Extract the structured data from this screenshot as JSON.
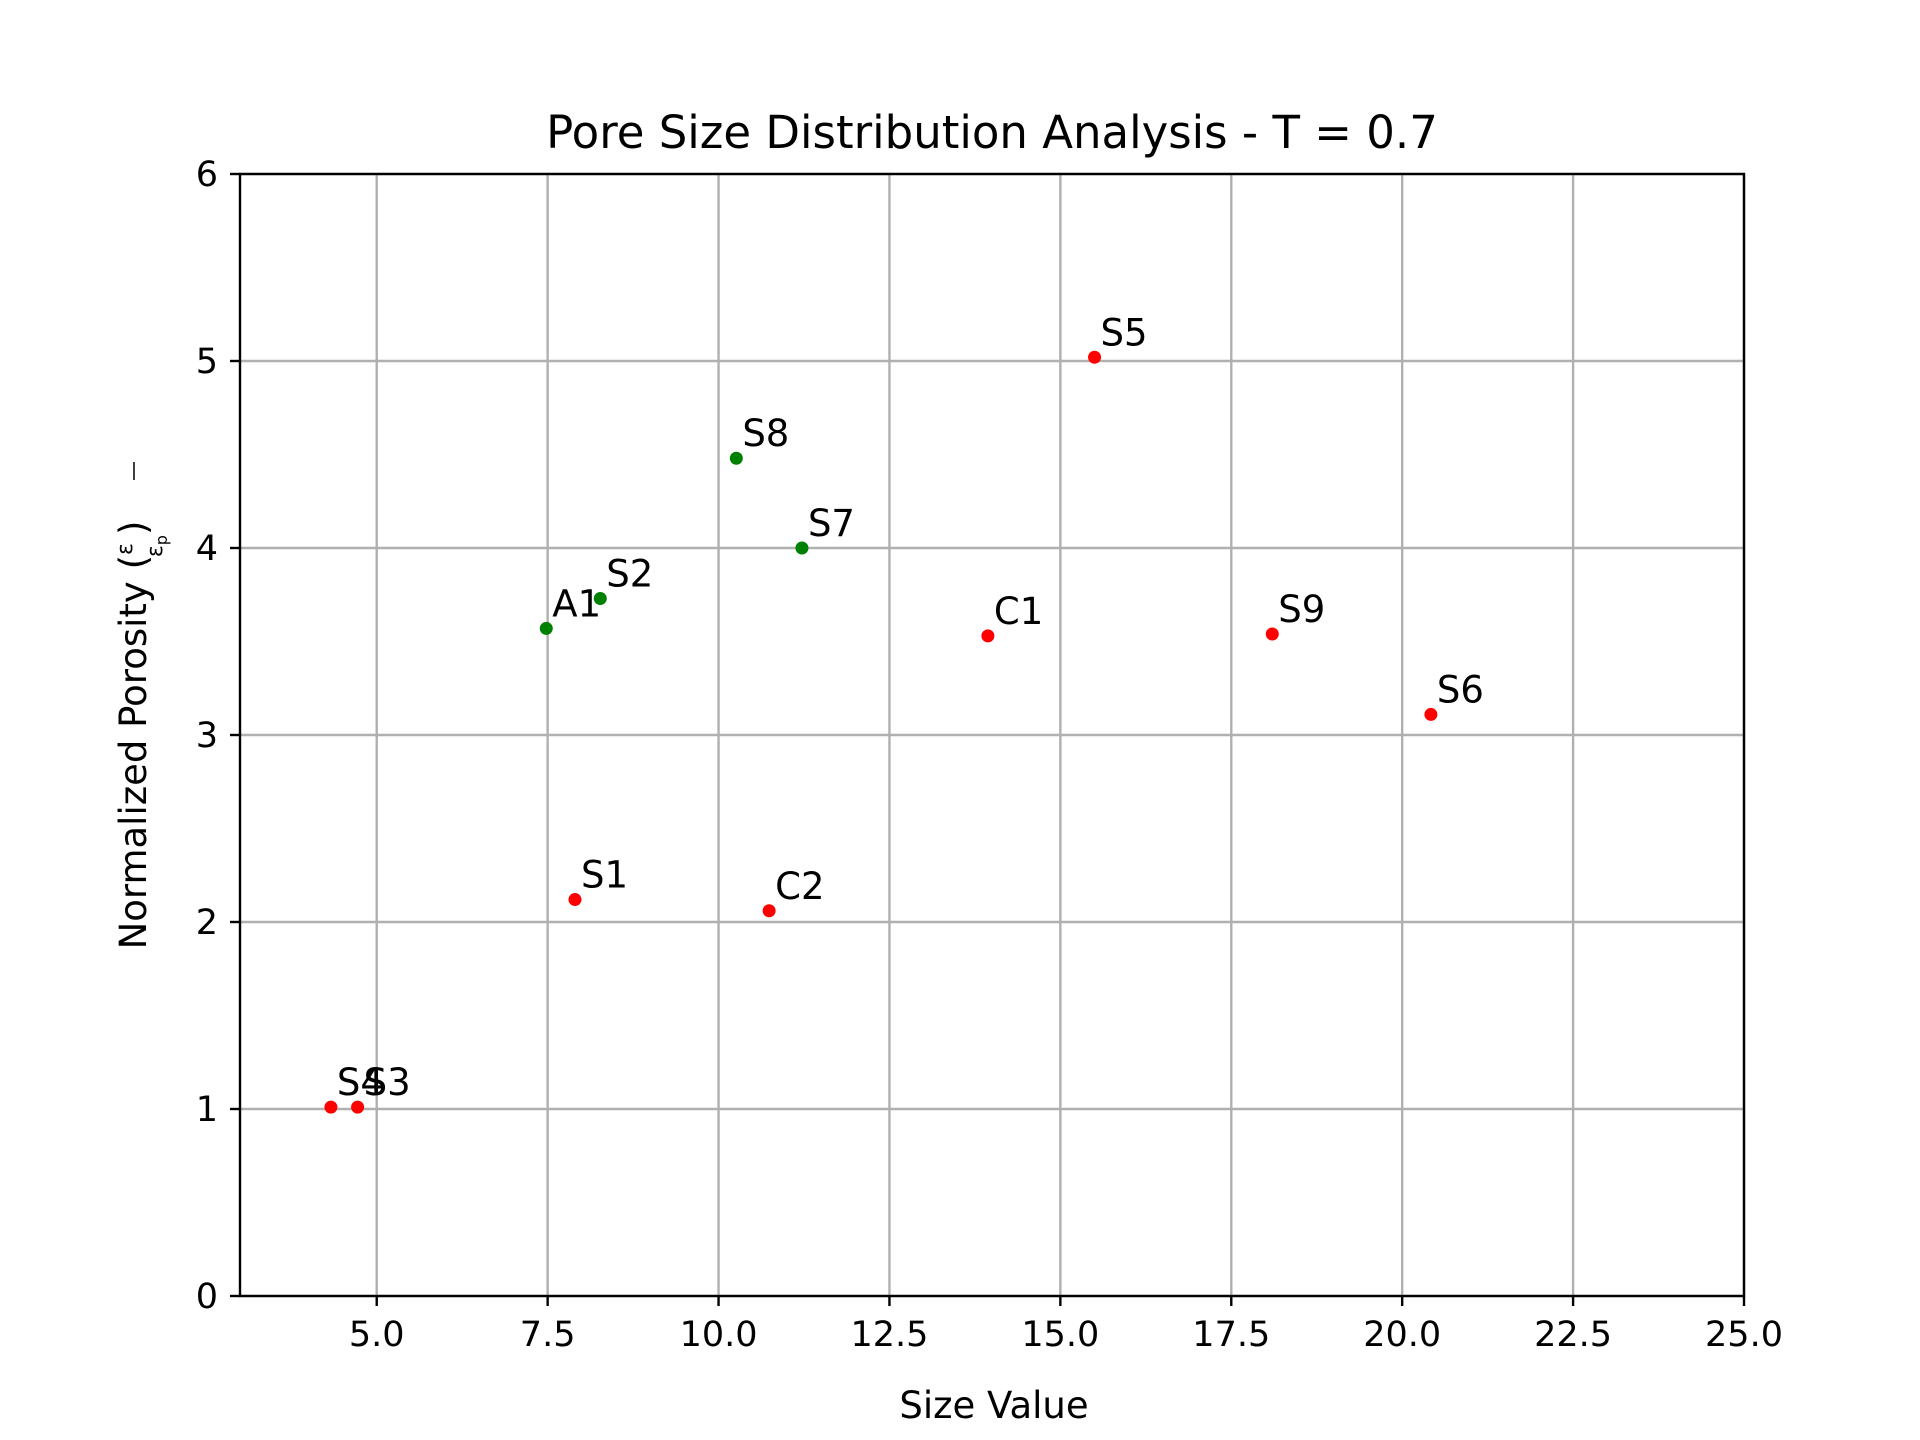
{
  "chart_data": {
    "type": "scatter",
    "title": "Pore Size Distribution Analysis - T = 0.7",
    "xlabel": "Size Value",
    "ylabel": "Normalized Porosity (",
    "ylabel_symbol_num": "ε",
    "ylabel_symbol_den": "ε",
    "ylabel_symbol_den_sub": "p",
    "ylabel_close": ")",
    "xlim": [
      3.0,
      25.0
    ],
    "ylim": [
      0,
      6
    ],
    "xticks": [
      "5.0",
      "7.5",
      "10.0",
      "12.5",
      "15.0",
      "17.5",
      "20.0",
      "22.5",
      "25.0"
    ],
    "xtick_values": [
      5.0,
      7.5,
      10.0,
      12.5,
      15.0,
      17.5,
      20.0,
      22.5,
      25.0
    ],
    "yticks": [
      "0",
      "1",
      "2",
      "3",
      "4",
      "5",
      "6"
    ],
    "ytick_values": [
      0,
      1,
      2,
      3,
      4,
      5,
      6
    ],
    "grid": true,
    "colors": {
      "red": "#ff0000",
      "green": "#008000"
    },
    "points": [
      {
        "label": "S1",
        "x": 7.9,
        "y": 2.12,
        "color": "red"
      },
      {
        "label": "S2",
        "x": 8.27,
        "y": 3.73,
        "color": "green"
      },
      {
        "label": "S3",
        "x": 4.72,
        "y": 1.01,
        "color": "red"
      },
      {
        "label": "S4",
        "x": 4.33,
        "y": 1.01,
        "color": "red"
      },
      {
        "label": "S5",
        "x": 15.5,
        "y": 5.02,
        "color": "red"
      },
      {
        "label": "S6",
        "x": 20.42,
        "y": 3.11,
        "color": "red"
      },
      {
        "label": "S7",
        "x": 11.22,
        "y": 4.0,
        "color": "green"
      },
      {
        "label": "S8",
        "x": 10.26,
        "y": 4.48,
        "color": "green"
      },
      {
        "label": "S9",
        "x": 18.1,
        "y": 3.54,
        "color": "red"
      },
      {
        "label": "A1",
        "x": 7.48,
        "y": 3.57,
        "color": "green"
      },
      {
        "label": "C1",
        "x": 13.94,
        "y": 3.53,
        "color": "red"
      },
      {
        "label": "C2",
        "x": 10.74,
        "y": 2.06,
        "color": "red"
      }
    ]
  }
}
